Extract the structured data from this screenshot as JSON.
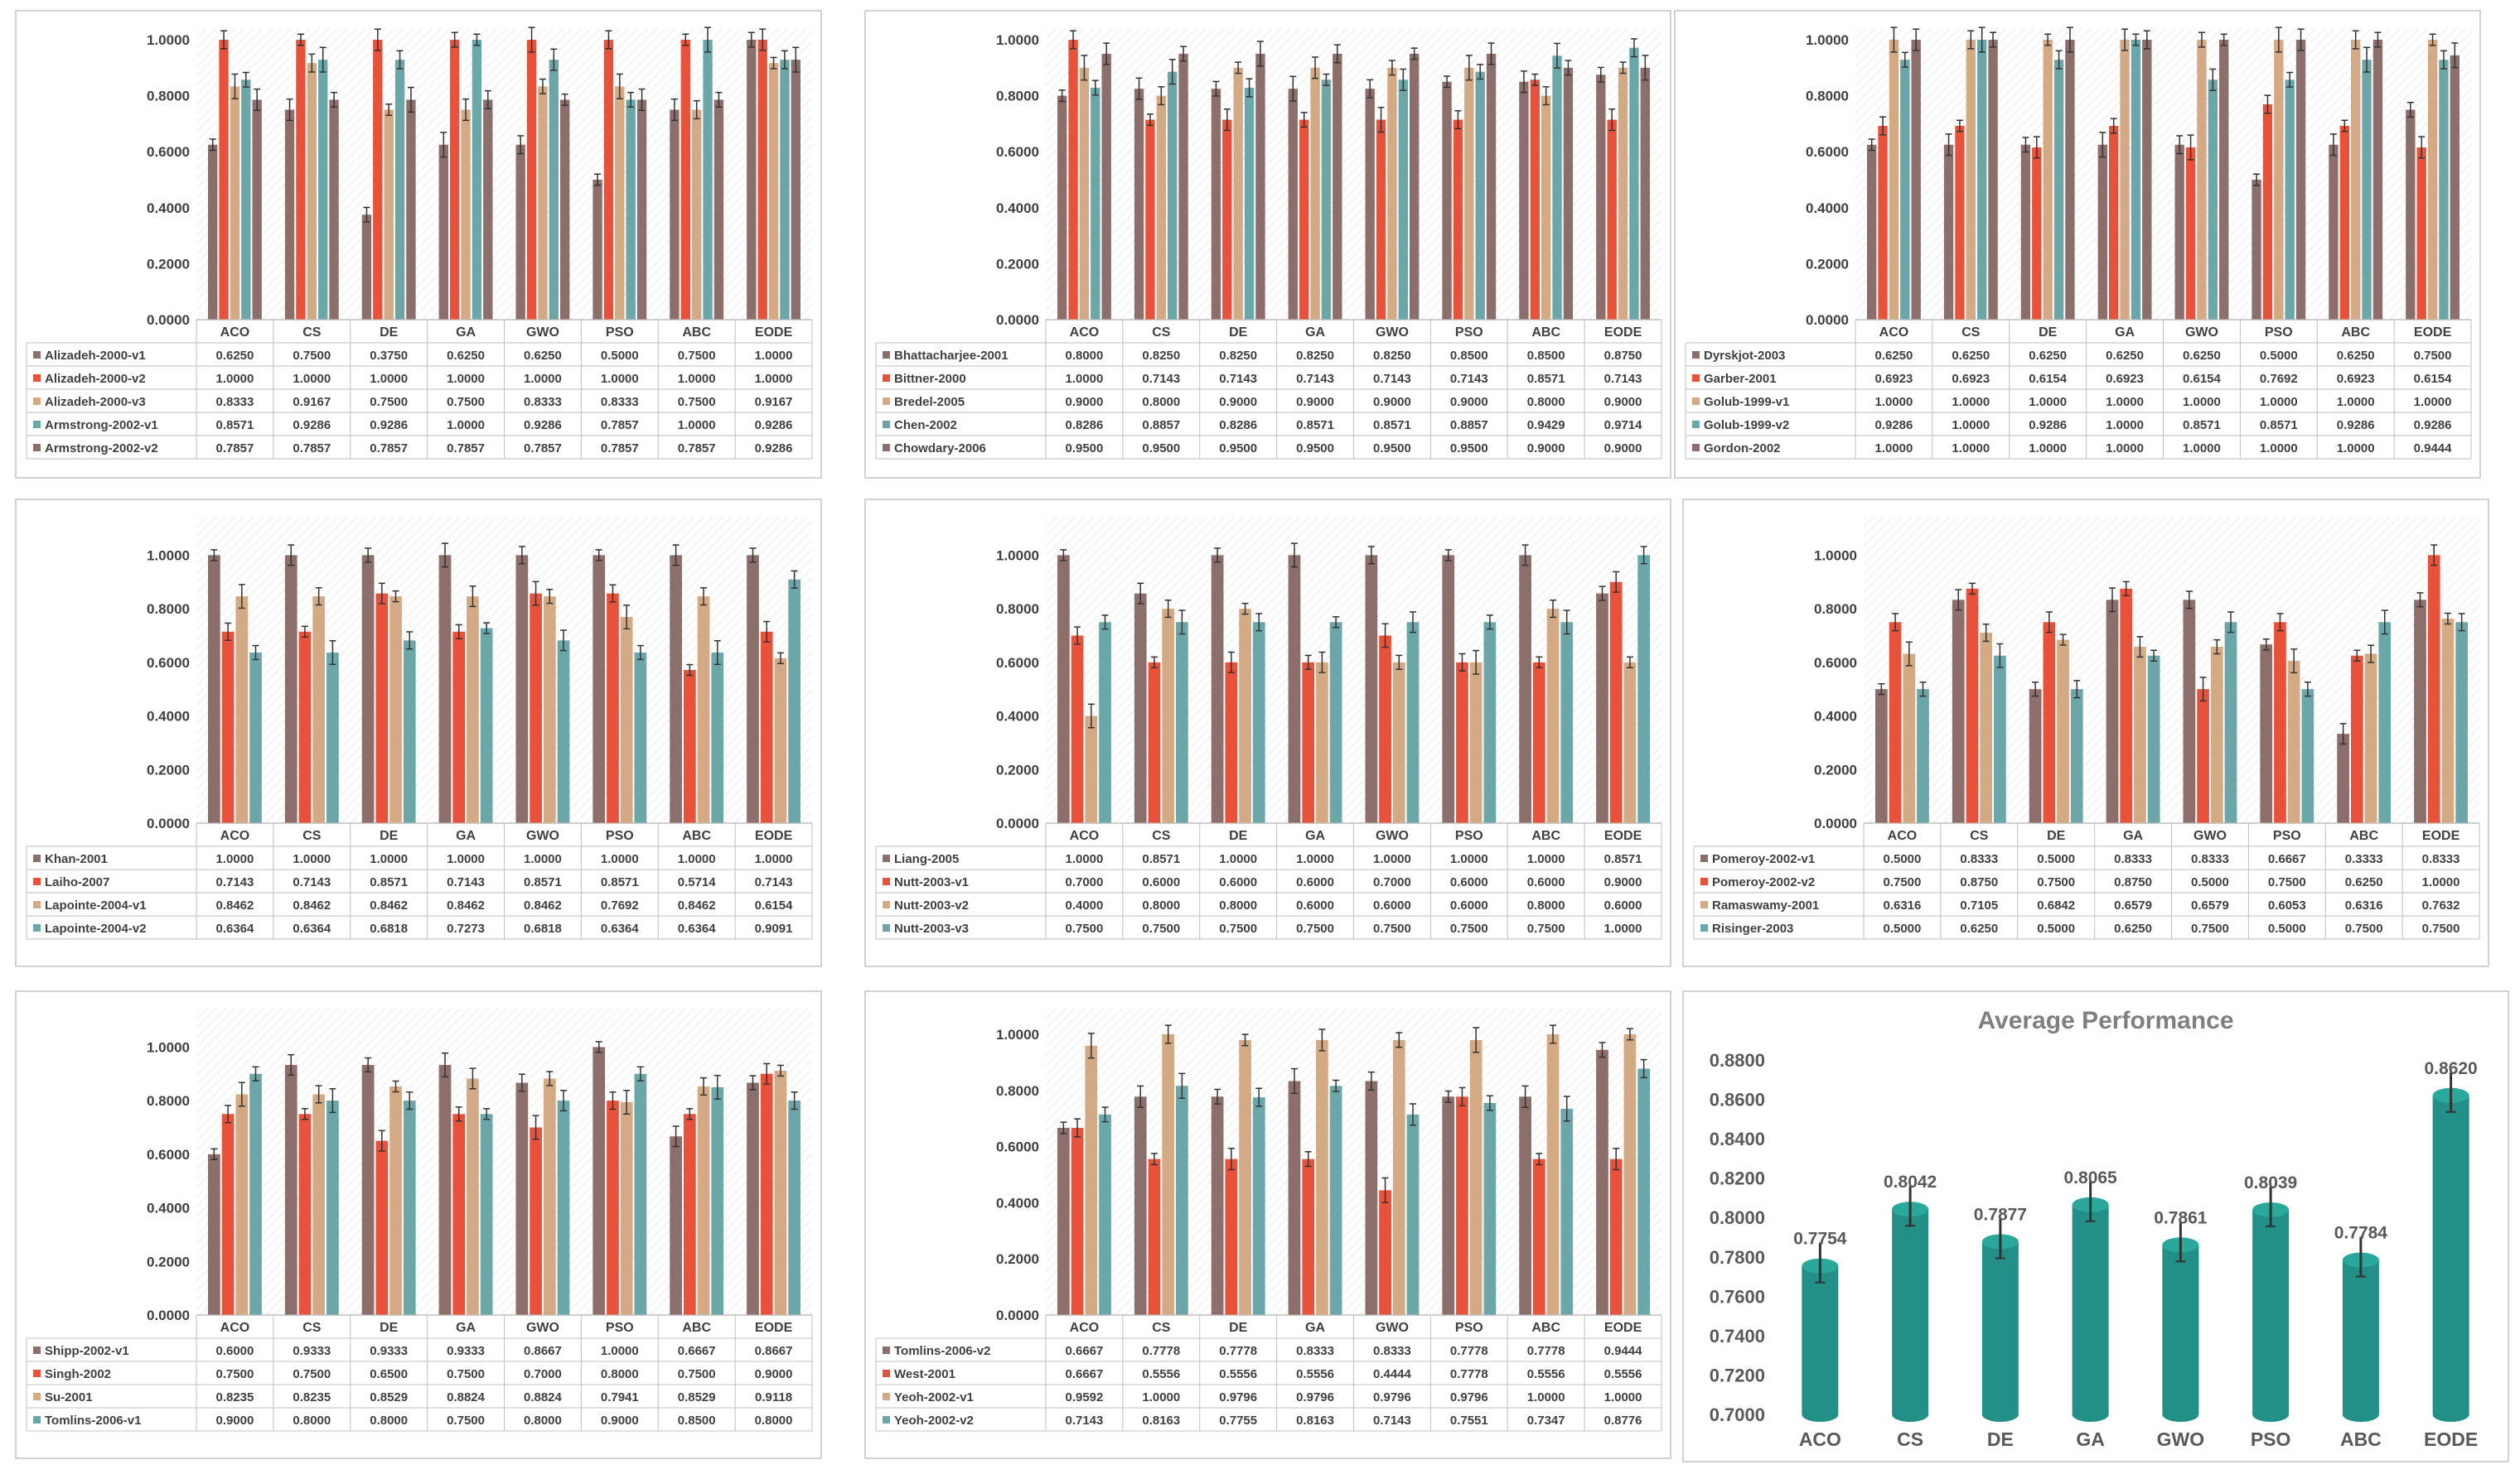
{
  "colors": [
    "#8c6e6a",
    "#e8523a",
    "#d4aa84",
    "#6ba7a9",
    "#8c6e6a"
  ],
  "avg_color": "#229086",
  "chart_data": [
    {
      "type": "bar",
      "categories": [
        "ACO",
        "CS",
        "DE",
        "GA",
        "GWO",
        "PSO",
        "ABC",
        "EODE"
      ],
      "yticks": [
        "1.0000",
        "0.8000",
        "0.6000",
        "0.4000",
        "0.2000",
        "0.0000"
      ],
      "ylim": [
        0,
        1
      ],
      "series": [
        {
          "name": "Alizadeh-2000-v1",
          "values": [
            "0.6250",
            "0.7500",
            "0.3750",
            "0.6250",
            "0.6250",
            "0.5000",
            "0.7500",
            "1.0000"
          ]
        },
        {
          "name": "Alizadeh-2000-v2",
          "values": [
            "1.0000",
            "1.0000",
            "1.0000",
            "1.0000",
            "1.0000",
            "1.0000",
            "1.0000",
            "1.0000"
          ]
        },
        {
          "name": "Alizadeh-2000-v3",
          "values": [
            "0.8333",
            "0.9167",
            "0.7500",
            "0.7500",
            "0.8333",
            "0.8333",
            "0.7500",
            "0.9167"
          ]
        },
        {
          "name": "Armstrong-2002-v1",
          "values": [
            "0.8571",
            "0.9286",
            "0.9286",
            "1.0000",
            "0.9286",
            "0.7857",
            "1.0000",
            "0.9286"
          ]
        },
        {
          "name": "Armstrong-2002-v2",
          "values": [
            "0.7857",
            "0.7857",
            "0.7857",
            "0.7857",
            "0.7857",
            "0.7857",
            "0.7857",
            "0.9286"
          ]
        }
      ]
    },
    {
      "type": "bar",
      "categories": [
        "ACO",
        "CS",
        "DE",
        "GA",
        "GWO",
        "PSO",
        "ABC",
        "EODE"
      ],
      "yticks": [
        "1.0000",
        "0.8000",
        "0.6000",
        "0.4000",
        "0.2000",
        "0.0000"
      ],
      "ylim": [
        0,
        1
      ],
      "series": [
        {
          "name": "Bhattacharjee-2001",
          "values": [
            "0.8000",
            "0.8250",
            "0.8250",
            "0.8250",
            "0.8250",
            "0.8500",
            "0.8500",
            "0.8750"
          ]
        },
        {
          "name": "Bittner-2000",
          "values": [
            "1.0000",
            "0.7143",
            "0.7143",
            "0.7143",
            "0.7143",
            "0.7143",
            "0.8571",
            "0.7143"
          ]
        },
        {
          "name": "Bredel-2005",
          "values": [
            "0.9000",
            "0.8000",
            "0.9000",
            "0.9000",
            "0.9000",
            "0.9000",
            "0.8000",
            "0.9000"
          ]
        },
        {
          "name": "Chen-2002",
          "values": [
            "0.8286",
            "0.8857",
            "0.8286",
            "0.8571",
            "0.8571",
            "0.8857",
            "0.9429",
            "0.9714"
          ]
        },
        {
          "name": "Chowdary-2006",
          "values": [
            "0.9500",
            "0.9500",
            "0.9500",
            "0.9500",
            "0.9500",
            "0.9500",
            "0.9000",
            "0.9000"
          ]
        }
      ]
    },
    {
      "type": "bar",
      "categories": [
        "ACO",
        "CS",
        "DE",
        "GA",
        "GWO",
        "PSO",
        "ABC",
        "EODE"
      ],
      "yticks": [
        "1.0000",
        "0.8000",
        "0.6000",
        "0.4000",
        "0.2000",
        "0.0000"
      ],
      "ylim": [
        0,
        1
      ],
      "series": [
        {
          "name": "Dyrskjot-2003",
          "values": [
            "0.6250",
            "0.6250",
            "0.6250",
            "0.6250",
            "0.6250",
            "0.5000",
            "0.6250",
            "0.7500"
          ]
        },
        {
          "name": "Garber-2001",
          "values": [
            "0.6923",
            "0.6923",
            "0.6154",
            "0.6923",
            "0.6154",
            "0.7692",
            "0.6923",
            "0.6154"
          ]
        },
        {
          "name": "Golub-1999-v1",
          "values": [
            "1.0000",
            "1.0000",
            "1.0000",
            "1.0000",
            "1.0000",
            "1.0000",
            "1.0000",
            "1.0000"
          ]
        },
        {
          "name": "Golub-1999-v2",
          "values": [
            "0.9286",
            "1.0000",
            "0.9286",
            "1.0000",
            "0.8571",
            "0.8571",
            "0.9286",
            "0.9286"
          ]
        },
        {
          "name": "Gordon-2002",
          "values": [
            "1.0000",
            "1.0000",
            "1.0000",
            "1.0000",
            "1.0000",
            "1.0000",
            "1.0000",
            "0.9444"
          ]
        }
      ]
    },
    {
      "type": "bar",
      "categories": [
        "ACO",
        "CS",
        "DE",
        "GA",
        "GWO",
        "PSO",
        "ABC",
        "EODE"
      ],
      "yticks": [
        "1.0000",
        "0.8000",
        "0.6000",
        "0.4000",
        "0.2000",
        "0.0000"
      ],
      "ylim": [
        0,
        1.1
      ],
      "series": [
        {
          "name": "Khan-2001",
          "values": [
            "1.0000",
            "1.0000",
            "1.0000",
            "1.0000",
            "1.0000",
            "1.0000",
            "1.0000",
            "1.0000"
          ]
        },
        {
          "name": "Laiho-2007",
          "values": [
            "0.7143",
            "0.7143",
            "0.8571",
            "0.7143",
            "0.8571",
            "0.8571",
            "0.5714",
            "0.7143"
          ]
        },
        {
          "name": "Lapointe-2004-v1",
          "values": [
            "0.8462",
            "0.8462",
            "0.8462",
            "0.8462",
            "0.8462",
            "0.7692",
            "0.8462",
            "0.6154"
          ]
        },
        {
          "name": "Lapointe-2004-v2",
          "values": [
            "0.6364",
            "0.6364",
            "0.6818",
            "0.7273",
            "0.6818",
            "0.6364",
            "0.6364",
            "0.9091"
          ]
        }
      ]
    },
    {
      "type": "bar",
      "categories": [
        "ACO",
        "CS",
        "DE",
        "GA",
        "GWO",
        "PSO",
        "ABC",
        "EODE"
      ],
      "yticks": [
        "1.0000",
        "0.8000",
        "0.6000",
        "0.4000",
        "0.2000",
        "0.0000"
      ],
      "ylim": [
        0,
        1.1
      ],
      "series": [
        {
          "name": "Liang-2005",
          "values": [
            "1.0000",
            "0.8571",
            "1.0000",
            "1.0000",
            "1.0000",
            "1.0000",
            "1.0000",
            "0.8571"
          ]
        },
        {
          "name": "Nutt-2003-v1",
          "values": [
            "0.7000",
            "0.6000",
            "0.6000",
            "0.6000",
            "0.7000",
            "0.6000",
            "0.6000",
            "0.9000"
          ]
        },
        {
          "name": "Nutt-2003-v2",
          "values": [
            "0.4000",
            "0.8000",
            "0.8000",
            "0.6000",
            "0.6000",
            "0.6000",
            "0.8000",
            "0.6000"
          ]
        },
        {
          "name": "Nutt-2003-v3",
          "values": [
            "0.7500",
            "0.7500",
            "0.7500",
            "0.7500",
            "0.7500",
            "0.7500",
            "0.7500",
            "1.0000"
          ]
        }
      ]
    },
    {
      "type": "bar",
      "categories": [
        "ACO",
        "CS",
        "DE",
        "GA",
        "GWO",
        "PSO",
        "ABC",
        "EODE"
      ],
      "yticks": [
        "1.0000",
        "0.8000",
        "0.6000",
        "0.4000",
        "0.2000",
        "0.0000"
      ],
      "ylim": [
        0,
        1.1
      ],
      "series": [
        {
          "name": "Pomeroy-2002-v1",
          "values": [
            "0.5000",
            "0.8333",
            "0.5000",
            "0.8333",
            "0.8333",
            "0.6667",
            "0.3333",
            "0.8333"
          ]
        },
        {
          "name": "Pomeroy-2002-v2",
          "values": [
            "0.7500",
            "0.8750",
            "0.7500",
            "0.8750",
            "0.5000",
            "0.7500",
            "0.6250",
            "1.0000"
          ]
        },
        {
          "name": "Ramaswamy-2001",
          "values": [
            "0.6316",
            "0.7105",
            "0.6842",
            "0.6579",
            "0.6579",
            "0.6053",
            "0.6316",
            "0.7632"
          ]
        },
        {
          "name": "Risinger-2003",
          "values": [
            "0.5000",
            "0.6250",
            "0.5000",
            "0.6250",
            "0.7500",
            "0.5000",
            "0.7500",
            "0.7500"
          ]
        }
      ]
    },
    {
      "type": "bar",
      "categories": [
        "ACO",
        "CS",
        "DE",
        "GA",
        "GWO",
        "PSO",
        "ABC",
        "EODE"
      ],
      "yticks": [
        "1.0000",
        "0.8000",
        "0.6000",
        "0.4000",
        "0.2000",
        "0.0000"
      ],
      "ylim": [
        0,
        1.1
      ],
      "series": [
        {
          "name": "Shipp-2002-v1",
          "values": [
            "0.6000",
            "0.9333",
            "0.9333",
            "0.9333",
            "0.8667",
            "1.0000",
            "0.6667",
            "0.8667"
          ]
        },
        {
          "name": "Singh-2002",
          "values": [
            "0.7500",
            "0.7500",
            "0.6500",
            "0.7500",
            "0.7000",
            "0.8000",
            "0.7500",
            "0.9000"
          ]
        },
        {
          "name": "Su-2001",
          "values": [
            "0.8235",
            "0.8235",
            "0.8529",
            "0.8824",
            "0.8824",
            "0.7941",
            "0.8529",
            "0.9118"
          ]
        },
        {
          "name": "Tomlins-2006-v1",
          "values": [
            "0.9000",
            "0.8000",
            "0.8000",
            "0.7500",
            "0.8000",
            "0.9000",
            "0.8500",
            "0.8000"
          ]
        }
      ]
    },
    {
      "type": "bar",
      "categories": [
        "ACO",
        "CS",
        "DE",
        "GA",
        "GWO",
        "PSO",
        "ABC",
        "EODE"
      ],
      "yticks": [
        "1.0000",
        "0.8000",
        "0.6000",
        "0.4000",
        "0.2000",
        "0.0000"
      ],
      "ylim": [
        0,
        1.05
      ],
      "series": [
        {
          "name": "Tomlins-2006-v2",
          "values": [
            "0.6667",
            "0.7778",
            "0.7778",
            "0.8333",
            "0.8333",
            "0.7778",
            "0.7778",
            "0.9444"
          ]
        },
        {
          "name": "West-2001",
          "values": [
            "0.6667",
            "0.5556",
            "0.5556",
            "0.5556",
            "0.4444",
            "0.7778",
            "0.5556",
            "0.5556"
          ]
        },
        {
          "name": "Yeoh-2002-v1",
          "values": [
            "0.9592",
            "1.0000",
            "0.9796",
            "0.9796",
            "0.9796",
            "0.9796",
            "1.0000",
            "1.0000"
          ]
        },
        {
          "name": "Yeoh-2002-v2",
          "values": [
            "0.7143",
            "0.8163",
            "0.7755",
            "0.8163",
            "0.7143",
            "0.7551",
            "0.7347",
            "0.8776"
          ]
        }
      ]
    },
    {
      "type": "bar",
      "title": "Average Performance",
      "categories": [
        "ACO",
        "CS",
        "DE",
        "GA",
        "GWO",
        "PSO",
        "ABC",
        "EODE"
      ],
      "values": [
        "0.7754",
        "0.8042",
        "0.7877",
        "0.8065",
        "0.7861",
        "0.8039",
        "0.7784",
        "0.8620"
      ],
      "yticks": [
        "0.8800",
        "0.8600",
        "0.8400",
        "0.8200",
        "0.8000",
        "0.7800",
        "0.7600",
        "0.7400",
        "0.7200",
        "0.7000"
      ],
      "ylim": [
        0.7,
        0.88
      ]
    }
  ]
}
